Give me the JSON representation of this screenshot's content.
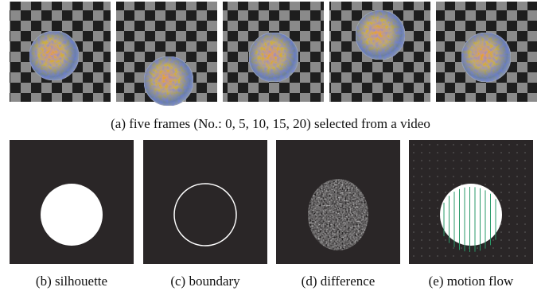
{
  "figure": {
    "top_caption": "(a) five frames (No.: 0, 5, 10, 15, 20) selected from a video",
    "bottom_captions": [
      "(b) silhouette",
      "(c) boundary",
      "(d) difference",
      "(e) motion flow"
    ]
  }
}
